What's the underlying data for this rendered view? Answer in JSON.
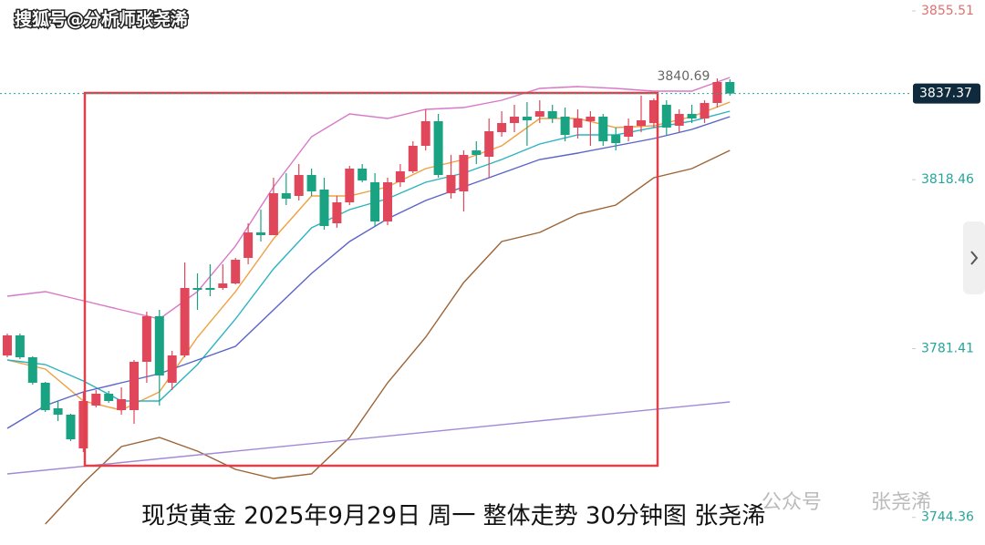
{
  "chart_data": {
    "type": "candlestick",
    "watermark": "搜狐号@分析师张尧浠",
    "caption": "现货黄金 2025年9月29日 周一 整体走势 30分钟图 张尧浠",
    "account_label": "公众号",
    "account_name": "张尧浠",
    "ylim": [
      3738.3,
      3857.9
    ],
    "yticks": [
      3744.36,
      3781.41,
      3818.46,
      3855.51
    ],
    "up_color": "#e0475a",
    "down_color": "#1aa383",
    "open": [
      3779.9,
      3784.3,
      3779.5,
      3773.9,
      3768.3,
      3766.9,
      3759.5,
      3768.9,
      3771.5,
      3767.9,
      3767.9,
      3778.5,
      3788.5,
      3773.9,
      3779.9,
      3794.7,
      3794.7,
      3794.7,
      3795.7,
      3801.3,
      3806.9,
      3806.3,
      3815.5,
      3814.9,
      3819.5,
      3816.3,
      3808.9,
      3813.5,
      3820.9,
      3817.9,
      3809.3,
      3817.9,
      3820.3,
      3825.9,
      3831.3,
      3815.5,
      3815.9,
      3824.9,
      3823.5,
      3828.9,
      3830.9,
      3832.3,
      3832.3,
      3833.5,
      3832.3,
      3829.9,
      3831.3,
      3832.3,
      3828.3,
      3827.9,
      3830.3,
      3830.9,
      3834.9,
      3830.3,
      3832.9,
      3831.9,
      3835.3,
      3839.9
    ],
    "high": [
      3784.7,
      3784.7,
      3779.7,
      3774.1,
      3769.9,
      3767.1,
      3771.9,
      3772.3,
      3772.1,
      3772.9,
      3778.9,
      3789.5,
      3789.9,
      3780.9,
      3800.3,
      3797.9,
      3799.9,
      3799.9,
      3801.3,
      3808.9,
      3811.9,
      3818.9,
      3819.9,
      3821.9,
      3820.9,
      3818.9,
      3814.9,
      3821.5,
      3821.9,
      3819.9,
      3818.9,
      3821.9,
      3826.9,
      3833.9,
      3832.9,
      3823.9,
      3824.9,
      3826.9,
      3831.9,
      3833.5,
      3834.9,
      3835.5,
      3835.9,
      3834.9,
      3834.3,
      3833.9,
      3833.5,
      3832.9,
      3829.9,
      3831.9,
      3836.9,
      3836.3,
      3835.9,
      3833.9,
      3834.9,
      3835.9,
      3840.69,
      3840.5
    ],
    "low": [
      3779.5,
      3779.1,
      3773.5,
      3767.5,
      3765.5,
      3761.1,
      3758.7,
      3768.5,
      3769.5,
      3766.9,
      3764.9,
      3773.9,
      3768.9,
      3772.3,
      3779.5,
      3789.9,
      3792.9,
      3794.3,
      3795.5,
      3799.9,
      3804.9,
      3806.3,
      3812.9,
      3813.9,
      3814.9,
      3807.5,
      3807.9,
      3812.9,
      3817.9,
      3808.3,
      3808.5,
      3816.9,
      3819.9,
      3824.9,
      3818.9,
      3814.3,
      3811.5,
      3821.9,
      3818.9,
      3827.9,
      3828.9,
      3825.9,
      3830.9,
      3830.9,
      3826.9,
      3827.5,
      3825.9,
      3825.9,
      3824.9,
      3826.9,
      3828.9,
      3829.9,
      3828.3,
      3828.9,
      3830.9,
      3830.9,
      3834.3,
      3836.9
    ],
    "close": [
      3784.3,
      3779.5,
      3773.9,
      3767.9,
      3766.9,
      3761.5,
      3769.9,
      3771.5,
      3769.9,
      3770.3,
      3778.5,
      3788.5,
      3775.5,
      3779.9,
      3794.7,
      3794.3,
      3794.3,
      3795.7,
      3800.9,
      3806.9,
      3806.3,
      3815.5,
      3814.3,
      3819.5,
      3815.9,
      3808.3,
      3813.5,
      3820.9,
      3818.3,
      3809.3,
      3817.9,
      3820.3,
      3825.9,
      3831.3,
      3819.5,
      3819.5,
      3823.9,
      3823.9,
      3829.1,
      3830.9,
      3832.3,
      3831.5,
      3833.5,
      3831.9,
      3828.3,
      3831.9,
      3832.3,
      3826.9,
      3826.5,
      3830.3,
      3831.5,
      3835.9,
      3829.9,
      3832.9,
      3831.9,
      3835.3,
      3839.9,
      3837.37
    ],
    "lines": [
      {
        "color": "#f0a040",
        "x": [
          0,
          3,
          6,
          9,
          12,
          15,
          18,
          21,
          24,
          27,
          30,
          33,
          36,
          39,
          42,
          45,
          48,
          51,
          54,
          57
        ],
        "values": [
          3778.9,
          3776.9,
          3769.9,
          3767.9,
          3771.9,
          3783.9,
          3793.9,
          3805.5,
          3814.9,
          3814.9,
          3816.9,
          3820.9,
          3822.9,
          3825.9,
          3831.9,
          3831.9,
          3829.9,
          3830.3,
          3832.3,
          3835.5
        ]
      },
      {
        "color": "#2bb3c0",
        "x": [
          0,
          3,
          6,
          9,
          12,
          15,
          18,
          21,
          24,
          27,
          30,
          33,
          36,
          39,
          42,
          45,
          48,
          51,
          54,
          57
        ],
        "values": [
          3778.9,
          3777.9,
          3774.3,
          3769.9,
          3769.9,
          3777.9,
          3787.9,
          3798.9,
          3807.9,
          3811.9,
          3814.3,
          3817.9,
          3819.9,
          3822.9,
          3826.3,
          3828.3,
          3828.3,
          3829.9,
          3831.3,
          3833.5
        ]
      },
      {
        "color": "#5a64c8",
        "x": [
          0,
          3,
          6,
          9,
          12,
          15,
          18,
          21,
          24,
          27,
          30,
          33,
          36,
          39,
          42,
          45,
          48,
          51,
          54,
          57
        ],
        "values": [
          3763.9,
          3768.9,
          3771.9,
          3773.9,
          3775.9,
          3778.9,
          3781.9,
          3789.9,
          3797.9,
          3804.9,
          3809.9,
          3813.9,
          3816.9,
          3819.9,
          3822.9,
          3824.3,
          3825.9,
          3827.5,
          3829.5,
          3832.3
        ]
      },
      {
        "color": "#9c6436",
        "x": [
          3,
          6,
          9,
          12,
          15,
          18,
          21,
          24,
          27,
          30,
          33,
          36,
          39,
          42,
          45,
          48,
          51,
          54,
          57
        ],
        "values": [
          3742.9,
          3751.9,
          3759.9,
          3761.9,
          3758.9,
          3754.9,
          3752.9,
          3753.9,
          3761.9,
          3773.9,
          3783.9,
          3795.9,
          3804.9,
          3806.9,
          3810.9,
          3812.9,
          3818.9,
          3820.9,
          3824.9
        ]
      },
      {
        "color": "#a08ad8",
        "x": [
          0,
          57
        ],
        "values": [
          3753.9,
          3769.7
        ]
      },
      {
        "color": "#d878c8",
        "x": [
          0,
          3,
          6,
          9,
          12,
          15,
          18,
          21,
          24,
          27,
          30,
          33,
          36,
          39,
          42,
          45,
          48,
          51,
          54,
          57
        ],
        "values": [
          3792.9,
          3793.9,
          3791.9,
          3789.9,
          3787.9,
          3793.9,
          3803.9,
          3816.9,
          3827.9,
          3832.9,
          3831.9,
          3833.9,
          3834.3,
          3835.9,
          3838.5,
          3838.9,
          3838.5,
          3837.9,
          3837.9,
          3840.9
        ]
      }
    ]
  }
}
